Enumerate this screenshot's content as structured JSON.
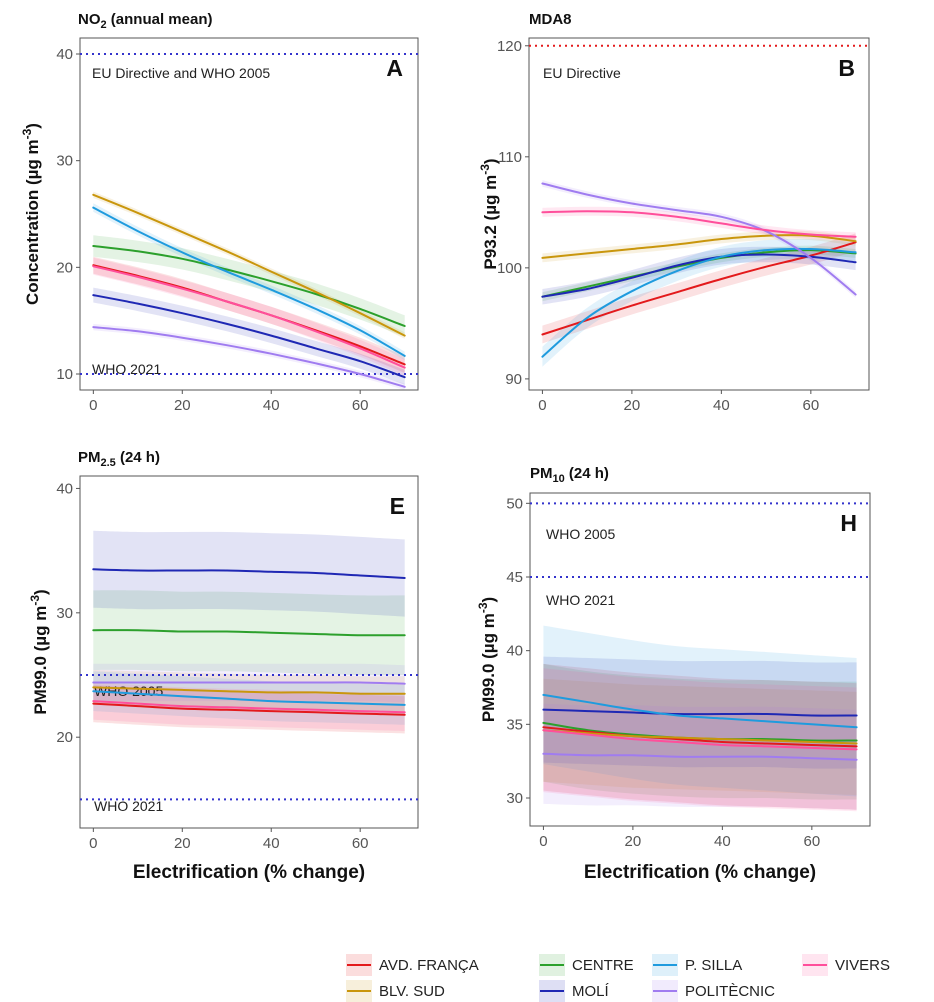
{
  "x_axis_label": "Electrification (% change)",
  "legend": {
    "items": [
      {
        "name": "AVD. FRANÇA",
        "color": "#e31a1c"
      },
      {
        "name": "CENTRE",
        "color": "#2ca02c"
      },
      {
        "name": "P. SILLA",
        "color": "#1f9bde"
      },
      {
        "name": "VIVERS",
        "color": "#ff4f9b"
      },
      {
        "name": "BLV. SUD",
        "color": "#c9960c"
      },
      {
        "name": "MOLÍ",
        "color": "#1f28b4"
      },
      {
        "name": "POLITÈCNIC",
        "color": "#a07cf0"
      }
    ]
  },
  "chart_data": [
    {
      "type": "line",
      "panel": "A",
      "title_main": "NO",
      "title_sub": "2",
      "title_rest": " (annual mean)",
      "ylabel": "Concentration (µg m⁻³)",
      "ylabel_main": "Concentration (µg m",
      "ylabel_sup": "-3",
      "ylabel_end": ")",
      "xlim": [
        -3,
        73
      ],
      "ylim": [
        8.5,
        41.5
      ],
      "xticks": [
        0,
        20,
        40,
        60
      ],
      "yticks": [
        10,
        20,
        30,
        40
      ],
      "x": [
        0,
        10,
        20,
        30,
        40,
        50,
        60,
        70
      ],
      "thresholds": [
        {
          "value": 40,
          "color": "#e41a1c",
          "text": "EU Directive and WHO 2005"
        },
        {
          "value": 40,
          "color": "#3333cc",
          "text": ""
        },
        {
          "value": 10,
          "color": "#3333cc",
          "text": "WHO 2021"
        }
      ],
      "series": [
        {
          "name": "AVD. FRANÇA",
          "values": [
            20.2,
            19.2,
            18.1,
            16.8,
            15.5,
            14.1,
            12.6,
            10.9
          ],
          "band": 0.8
        },
        {
          "name": "BLV. SUD",
          "values": [
            26.8,
            25.1,
            23.3,
            21.5,
            19.6,
            17.7,
            15.7,
            13.6
          ],
          "band": 0.3
        },
        {
          "name": "CENTRE",
          "values": [
            22.0,
            21.5,
            20.8,
            19.8,
            18.7,
            17.5,
            16.1,
            14.5
          ],
          "band": 1.0
        },
        {
          "name": "MOLÍ",
          "values": [
            17.4,
            16.6,
            15.7,
            14.7,
            13.6,
            12.4,
            11.2,
            9.7
          ],
          "band": 0.7
        },
        {
          "name": "P. SILLA",
          "values": [
            25.6,
            23.4,
            21.4,
            19.6,
            17.9,
            16.1,
            14.1,
            11.7
          ],
          "band": 0.4
        },
        {
          "name": "POLITÈCNIC",
          "values": [
            14.4,
            14.0,
            13.4,
            12.7,
            11.9,
            11.0,
            10.0,
            8.8
          ],
          "band": 0.3
        },
        {
          "name": "VIVERS",
          "values": [
            20.1,
            19.1,
            18.0,
            16.8,
            15.5,
            14.0,
            12.4,
            10.6
          ],
          "band": 0.8
        }
      ]
    },
    {
      "type": "line",
      "panel": "B",
      "title_main": "MDA8",
      "title_sub": "",
      "title_rest": "",
      "ylabel": "P93.2 (µg m⁻³)",
      "ylabel_main": "P93.2 (µg m",
      "ylabel_sup": "-3",
      "ylabel_end": ")",
      "xlim": [
        -3,
        73
      ],
      "ylim": [
        89,
        120.7
      ],
      "xticks": [
        0,
        20,
        40,
        60
      ],
      "yticks": [
        90,
        100,
        110,
        120
      ],
      "x": [
        0,
        10,
        20,
        30,
        40,
        50,
        60,
        70
      ],
      "thresholds": [
        {
          "value": 120,
          "color": "#e41a1c",
          "text": "EU Directive"
        }
      ],
      "series": [
        {
          "name": "AVD. FRANÇA",
          "values": [
            94.0,
            95.3,
            96.6,
            97.8,
            99.0,
            100.1,
            101.1,
            102.3
          ],
          "band": 0.8
        },
        {
          "name": "BLV. SUD",
          "values": [
            100.9,
            101.3,
            101.7,
            102.1,
            102.6,
            102.9,
            102.9,
            102.4
          ],
          "band": 0.4
        },
        {
          "name": "CENTRE",
          "values": [
            97.4,
            98.3,
            99.2,
            100.1,
            100.9,
            101.4,
            101.6,
            101.3
          ],
          "band": 0.4
        },
        {
          "name": "MOLÍ",
          "values": [
            97.4,
            98.1,
            99.1,
            100.2,
            101.0,
            101.2,
            101.0,
            100.5
          ],
          "band": 0.7
        },
        {
          "name": "P. SILLA",
          "values": [
            92.0,
            95.5,
            97.9,
            99.7,
            101.0,
            101.6,
            101.7,
            101.4
          ],
          "band": 0.9
        },
        {
          "name": "POLITÈCNIC",
          "values": [
            107.6,
            106.6,
            105.8,
            105.2,
            104.6,
            103.3,
            100.9,
            97.6
          ],
          "band": 0.3
        },
        {
          "name": "VIVERS",
          "values": [
            105.0,
            105.1,
            105.0,
            104.6,
            104.0,
            103.4,
            103.0,
            102.8
          ],
          "band": 0.4
        }
      ]
    },
    {
      "type": "line",
      "panel": "E",
      "title_main": "PM",
      "title_sub": "2.5",
      "title_rest": " (24 h)",
      "ylabel": "PM99.0 (µg m⁻³)",
      "ylabel_main": "PM99.0 (µg m",
      "ylabel_sup": "-3",
      "ylabel_end": ")",
      "xlim": [
        -3,
        73
      ],
      "ylim": [
        12.7,
        41
      ],
      "xticks": [
        0,
        20,
        40,
        60
      ],
      "yticks": [
        20,
        30,
        40
      ],
      "x": [
        0,
        10,
        20,
        30,
        40,
        50,
        60,
        70
      ],
      "thresholds": [
        {
          "value": 25,
          "color": "#3333cc",
          "text": "WHO 2005"
        },
        {
          "value": 15,
          "color": "#3333cc",
          "text": "WHO 2021"
        }
      ],
      "series": [
        {
          "name": "AVD. FRANÇA",
          "values": [
            22.7,
            22.5,
            22.3,
            22.2,
            22.1,
            22.0,
            21.9,
            21.8
          ],
          "band": 1.5
        },
        {
          "name": "BLV. SUD",
          "values": [
            24.0,
            23.9,
            23.8,
            23.7,
            23.6,
            23.6,
            23.5,
            23.5
          ],
          "band": 1.4
        },
        {
          "name": "CENTRE",
          "values": [
            28.6,
            28.6,
            28.5,
            28.5,
            28.4,
            28.3,
            28.2,
            28.2
          ],
          "band": 3.2
        },
        {
          "name": "MOLÍ",
          "values": [
            33.5,
            33.4,
            33.4,
            33.4,
            33.3,
            33.2,
            33.0,
            32.8
          ],
          "band": 3.1
        },
        {
          "name": "P. SILLA",
          "values": [
            23.7,
            23.5,
            23.3,
            23.1,
            22.9,
            22.8,
            22.7,
            22.6
          ],
          "band": 1.6
        },
        {
          "name": "POLITÈCNIC",
          "values": [
            24.4,
            24.4,
            24.4,
            24.4,
            24.4,
            24.4,
            24.4,
            24.3
          ],
          "band": 1.5
        },
        {
          "name": "VIVERS",
          "values": [
            22.9,
            22.7,
            22.5,
            22.4,
            22.3,
            22.2,
            22.1,
            22.0
          ],
          "band": 1.5
        }
      ]
    },
    {
      "type": "line",
      "panel": "H",
      "title_main": "PM",
      "title_sub": "10",
      "title_rest": " (24 h)",
      "ylabel": "PM99.0 (µg m⁻³)",
      "ylabel_main": "PM99.0 (µg m",
      "ylabel_sup": "-3",
      "ylabel_end": ")",
      "xlim": [
        -3,
        73
      ],
      "ylim": [
        28.1,
        50.7
      ],
      "xticks": [
        0,
        20,
        40,
        60
      ],
      "yticks": [
        30,
        35,
        40,
        45,
        50
      ],
      "x": [
        0,
        10,
        20,
        30,
        40,
        50,
        60,
        70
      ],
      "thresholds": [
        {
          "value": 50,
          "color": "#3333cc",
          "text": "WHO 2005"
        },
        {
          "value": 45,
          "color": "#3333cc",
          "text": "WHO 2021"
        }
      ],
      "series": [
        {
          "name": "AVD. FRANÇA",
          "values": [
            34.8,
            34.5,
            34.2,
            34.0,
            33.8,
            33.7,
            33.6,
            33.5
          ],
          "band": 4.3
        },
        {
          "name": "BLV. SUD",
          "values": [
            34.6,
            34.4,
            34.2,
            34.1,
            34.0,
            33.9,
            33.8,
            33.7
          ],
          "band": 3.5
        },
        {
          "name": "CENTRE",
          "values": [
            35.1,
            34.6,
            34.3,
            34.1,
            34.0,
            34.0,
            33.9,
            33.9
          ],
          "band": 4.0
        },
        {
          "name": "MOLÍ",
          "values": [
            36.0,
            35.9,
            35.8,
            35.7,
            35.7,
            35.7,
            35.6,
            35.6
          ],
          "band": 3.6
        },
        {
          "name": "P. SILLA",
          "values": [
            37.0,
            36.5,
            36.0,
            35.6,
            35.4,
            35.2,
            35.0,
            34.8
          ],
          "band": 4.7
        },
        {
          "name": "POLITÈCNIC",
          "values": [
            33.0,
            32.9,
            32.9,
            32.8,
            32.8,
            32.8,
            32.7,
            32.6
          ],
          "band": 3.4
        },
        {
          "name": "VIVERS",
          "values": [
            34.6,
            34.3,
            34.0,
            33.8,
            33.6,
            33.5,
            33.4,
            33.3
          ],
          "band": 4.2
        }
      ]
    }
  ]
}
